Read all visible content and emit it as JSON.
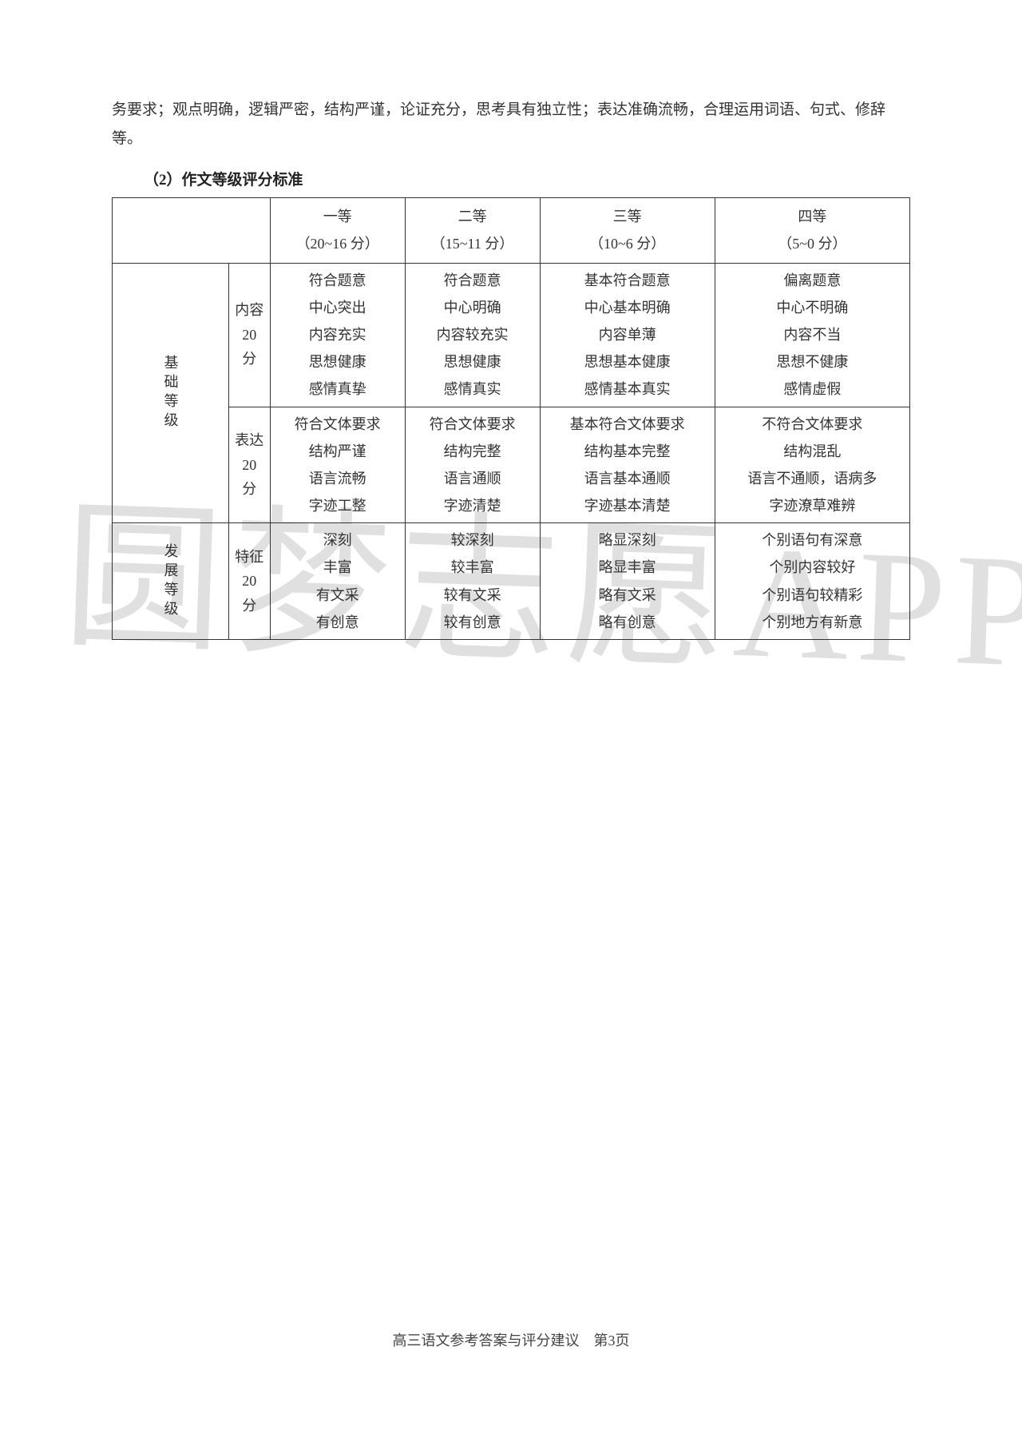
{
  "intro": "务要求；观点明确，逻辑严密，结构严谨，论证充分，思考具有独立性；表达准确流畅，合理运用词语、句式、修辞等。",
  "section_title": "（2）作文等级评分标准",
  "watermark": "圆梦志愿APP",
  "footer": "高三语文参考答案与评分建议　第3页",
  "headers": {
    "col1": "一等\n（20~16 分）",
    "col2": "二等\n（15~11 分）",
    "col3": "三等\n（10~6 分）",
    "col4": "四等\n（5~0 分）"
  },
  "groups": {
    "basic": "基础等级",
    "devel": "发展等级"
  },
  "subheads": {
    "content": "内容\n20\n分",
    "express": "表达\n20\n分",
    "feature": "特征\n20\n分"
  },
  "rows": {
    "content": {
      "c1": "符合题意\n中心突出\n内容充实\n思想健康\n感情真挚",
      "c2": "符合题意\n中心明确\n内容较充实\n思想健康\n感情真实",
      "c3": "基本符合题意\n中心基本明确\n内容单薄\n思想基本健康\n感情基本真实",
      "c4": "偏离题意\n中心不明确\n内容不当\n思想不健康\n感情虚假"
    },
    "express": {
      "c1": "符合文体要求\n结构严谨\n语言流畅\n字迹工整",
      "c2": "符合文体要求\n结构完整\n语言通顺\n字迹清楚",
      "c3": "基本符合文体要求\n结构基本完整\n语言基本通顺\n字迹基本清楚",
      "c4": "不符合文体要求\n结构混乱\n语言不通顺，语病多\n字迹潦草难辨"
    },
    "feature": {
      "c1": "深刻\n丰富\n有文采\n有创意",
      "c2": "较深刻\n较丰富\n较有文采\n较有创意",
      "c3": "略显深刻\n略显丰富\n略有文采\n略有创意",
      "c4": "个别语句有深意\n个别内容较好\n个别语句较精彩\n个别地方有新意"
    }
  }
}
